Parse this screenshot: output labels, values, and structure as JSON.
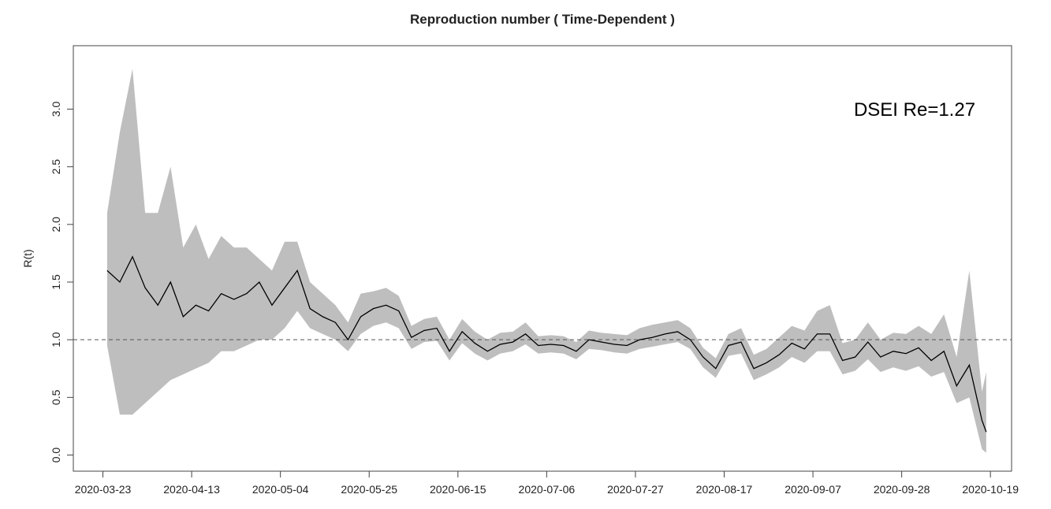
{
  "chart_data": {
    "type": "line",
    "title": "Reproduction number ( Time-Dependent )",
    "ylabel": "R(t)",
    "annotation": "DSEI Re=1.27",
    "x": [
      "2020-03-24",
      "2020-03-27",
      "2020-03-30",
      "2020-04-02",
      "2020-04-05",
      "2020-04-08",
      "2020-04-11",
      "2020-04-14",
      "2020-04-17",
      "2020-04-20",
      "2020-04-23",
      "2020-04-26",
      "2020-04-29",
      "2020-05-02",
      "2020-05-05",
      "2020-05-08",
      "2020-05-11",
      "2020-05-14",
      "2020-05-17",
      "2020-05-20",
      "2020-05-23",
      "2020-05-26",
      "2020-05-29",
      "2020-06-01",
      "2020-06-04",
      "2020-06-07",
      "2020-06-10",
      "2020-06-13",
      "2020-06-16",
      "2020-06-19",
      "2020-06-22",
      "2020-06-25",
      "2020-06-28",
      "2020-07-01",
      "2020-07-04",
      "2020-07-07",
      "2020-07-10",
      "2020-07-13",
      "2020-07-16",
      "2020-07-19",
      "2020-07-22",
      "2020-07-25",
      "2020-07-28",
      "2020-07-31",
      "2020-08-03",
      "2020-08-06",
      "2020-08-09",
      "2020-08-12",
      "2020-08-15",
      "2020-08-18",
      "2020-08-21",
      "2020-08-24",
      "2020-08-27",
      "2020-08-30",
      "2020-09-02",
      "2020-09-05",
      "2020-09-08",
      "2020-09-11",
      "2020-09-14",
      "2020-09-17",
      "2020-09-20",
      "2020-09-23",
      "2020-09-26",
      "2020-09-29",
      "2020-10-02",
      "2020-10-05",
      "2020-10-08",
      "2020-10-11",
      "2020-10-14",
      "2020-10-17",
      "2020-10-18"
    ],
    "values": [
      1.6,
      1.5,
      1.72,
      1.45,
      1.3,
      1.5,
      1.2,
      1.3,
      1.25,
      1.4,
      1.35,
      1.4,
      1.5,
      1.3,
      1.45,
      1.6,
      1.27,
      1.2,
      1.15,
      1.0,
      1.2,
      1.27,
      1.3,
      1.25,
      1.02,
      1.08,
      1.1,
      0.9,
      1.07,
      0.97,
      0.9,
      0.96,
      0.98,
      1.05,
      0.95,
      0.96,
      0.95,
      0.9,
      1.0,
      0.98,
      0.96,
      0.95,
      1.0,
      1.02,
      1.05,
      1.07,
      1.0,
      0.85,
      0.75,
      0.95,
      0.98,
      0.75,
      0.8,
      0.87,
      0.97,
      0.92,
      1.05,
      1.05,
      0.82,
      0.85,
      0.98,
      0.85,
      0.9,
      0.88,
      0.93,
      0.82,
      0.9,
      0.6,
      0.78,
      0.3,
      0.2
    ],
    "lower": [
      0.95,
      0.35,
      0.35,
      0.45,
      0.55,
      0.65,
      0.7,
      0.75,
      0.8,
      0.9,
      0.9,
      0.95,
      1.0,
      1.0,
      1.1,
      1.25,
      1.1,
      1.05,
      1.0,
      0.9,
      1.05,
      1.12,
      1.15,
      1.1,
      0.92,
      0.98,
      0.99,
      0.82,
      0.97,
      0.88,
      0.82,
      0.88,
      0.9,
      0.96,
      0.88,
      0.89,
      0.88,
      0.83,
      0.92,
      0.91,
      0.89,
      0.88,
      0.92,
      0.94,
      0.96,
      0.98,
      0.92,
      0.76,
      0.67,
      0.86,
      0.88,
      0.65,
      0.7,
      0.76,
      0.85,
      0.8,
      0.9,
      0.9,
      0.7,
      0.73,
      0.83,
      0.72,
      0.76,
      0.73,
      0.77,
      0.68,
      0.72,
      0.45,
      0.5,
      0.05,
      0.02
    ],
    "upper": [
      2.1,
      2.8,
      3.35,
      2.1,
      2.1,
      2.5,
      1.8,
      2.0,
      1.7,
      1.9,
      1.8,
      1.8,
      1.7,
      1.6,
      1.85,
      1.85,
      1.5,
      1.4,
      1.3,
      1.15,
      1.4,
      1.42,
      1.45,
      1.38,
      1.12,
      1.18,
      1.2,
      1.0,
      1.18,
      1.07,
      1.0,
      1.06,
      1.07,
      1.15,
      1.03,
      1.04,
      1.03,
      0.98,
      1.08,
      1.06,
      1.05,
      1.04,
      1.1,
      1.13,
      1.15,
      1.17,
      1.1,
      0.93,
      0.84,
      1.05,
      1.1,
      0.87,
      0.92,
      1.02,
      1.12,
      1.08,
      1.25,
      1.3,
      0.97,
      1.0,
      1.15,
      1.0,
      1.06,
      1.05,
      1.12,
      1.05,
      1.22,
      0.85,
      1.6,
      0.55,
      0.72
    ],
    "line_color": "#000000",
    "band_color": "#bebebe",
    "reference_line": 1,
    "xlim": [
      "2020-03-16",
      "2020-10-24"
    ],
    "xticks": [
      "2020-03-23",
      "2020-04-13",
      "2020-05-04",
      "2020-05-25",
      "2020-06-15",
      "2020-07-06",
      "2020-07-27",
      "2020-08-17",
      "2020-09-07",
      "2020-09-28",
      "2020-10-19"
    ],
    "ylim": [
      -0.14,
      3.55
    ],
    "yticks": [
      {
        "value": 0,
        "label": "0.0"
      },
      0.5,
      {
        "value": 1,
        "label": "1.0"
      },
      1.5,
      {
        "value": 2,
        "label": "2.0"
      },
      2.5,
      {
        "value": 3,
        "label": "3.0"
      }
    ]
  }
}
